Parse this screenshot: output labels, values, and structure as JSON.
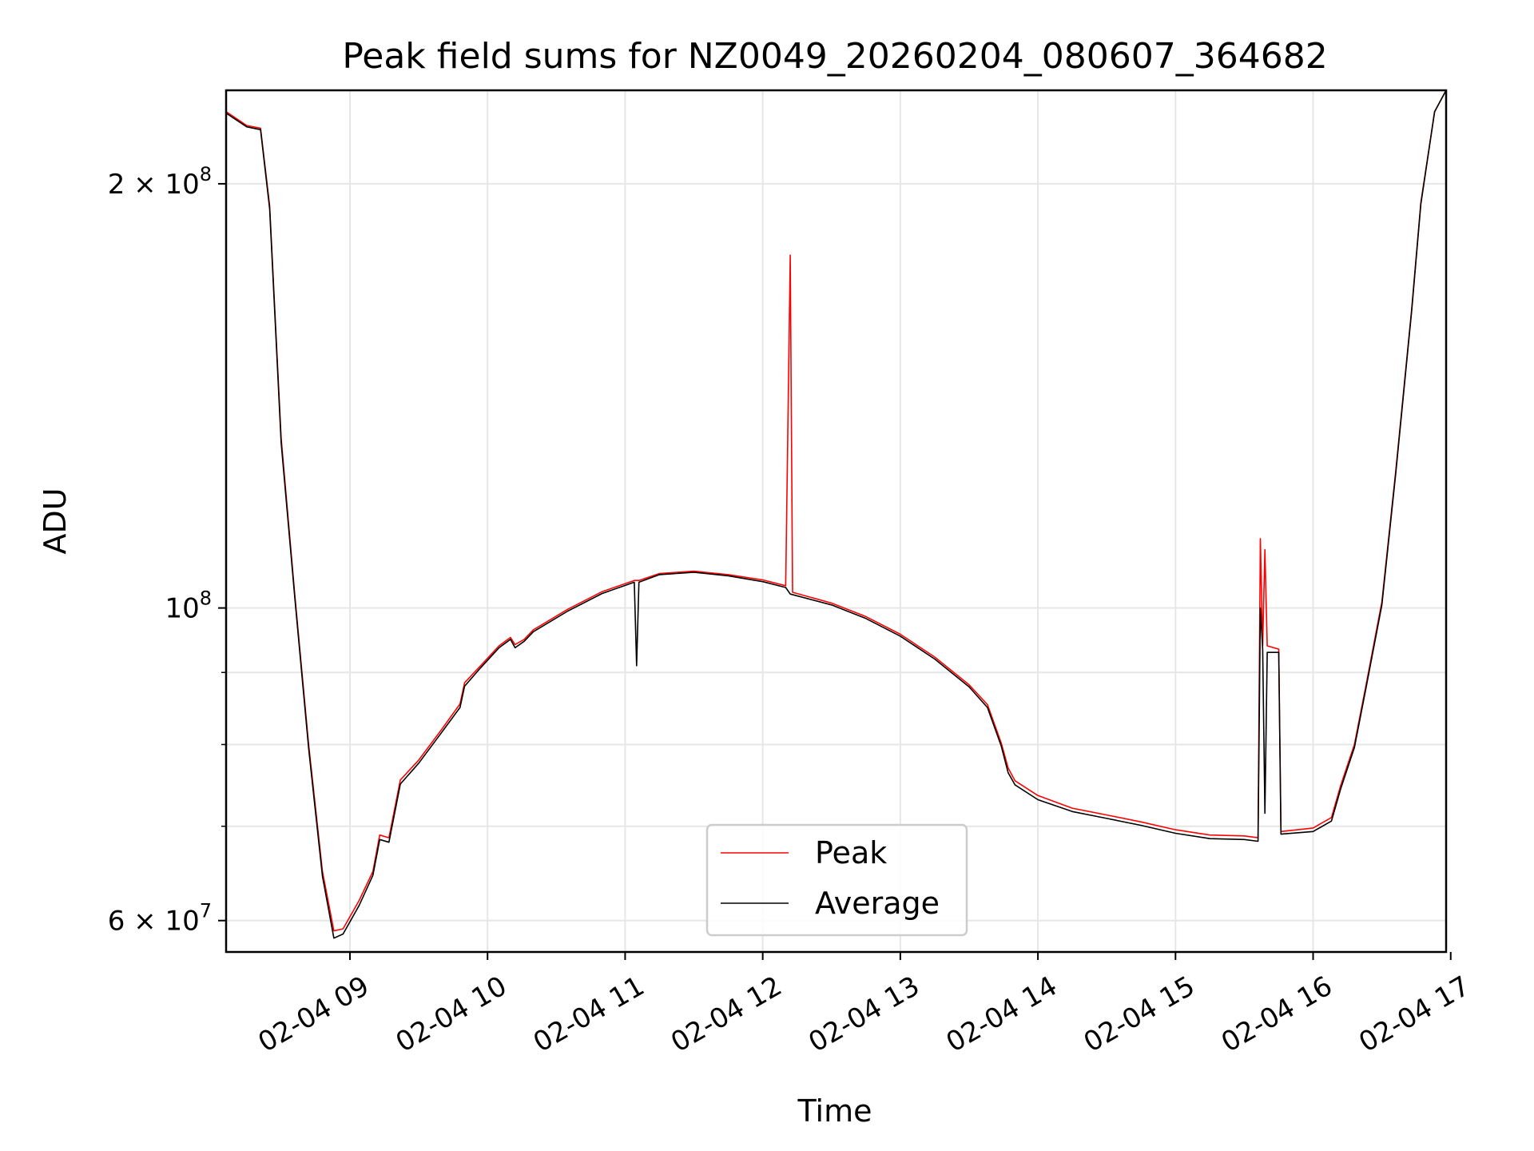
{
  "chart_data": {
    "type": "line",
    "title": "Peak field sums for NZ0049_20260204_080607_364682",
    "xlabel": "Time",
    "ylabel": "ADU",
    "x_ticks": [
      "02-04 09",
      "02-04 10",
      "02-04 11",
      "02-04 12",
      "02-04 13",
      "02-04 14",
      "02-04 15",
      "02-04 16",
      "02-04 17"
    ],
    "y_scale": "log",
    "y_major_ticks": [
      {
        "value": 60000000,
        "label": "6 × 10^7",
        "base": "6 × 10",
        "exp": "7"
      },
      {
        "value": 100000000,
        "label": "10^8",
        "base": "10",
        "exp": "8"
      },
      {
        "value": 200000000,
        "label": "2 × 10^8",
        "base": "2 × 10",
        "exp": "8"
      }
    ],
    "y_minor_ticks": [
      70000000,
      80000000,
      90000000
    ],
    "xlim": [
      "2026-02-04T08:06",
      "2026-02-04T16:58"
    ],
    "ylim": [
      57000000,
      233000000
    ],
    "grid": true,
    "legend_position": "lower-center",
    "series": [
      {
        "name": "Peak",
        "color": "#ff0000",
        "points": [
          [
            "2026-02-04T08:06",
            225000000
          ],
          [
            "2026-02-04T08:15",
            220000000
          ],
          [
            "2026-02-04T08:21",
            219000000
          ],
          [
            "2026-02-04T08:25",
            193000000
          ],
          [
            "2026-02-04T08:30",
            132000000
          ],
          [
            "2026-02-04T08:36",
            102000000
          ],
          [
            "2026-02-04T08:42",
            80000000
          ],
          [
            "2026-02-04T08:48",
            65000000
          ],
          [
            "2026-02-04T08:53",
            59000000
          ],
          [
            "2026-02-04T08:57",
            59200000
          ],
          [
            "2026-02-04T09:04",
            62000000
          ],
          [
            "2026-02-04T09:10",
            65000000
          ],
          [
            "2026-02-04T09:13",
            69000000
          ],
          [
            "2026-02-04T09:17",
            68700000
          ],
          [
            "2026-02-04T09:22",
            75500000
          ],
          [
            "2026-02-04T09:30",
            78000000
          ],
          [
            "2026-02-04T09:40",
            82000000
          ],
          [
            "2026-02-04T09:48",
            85500000
          ],
          [
            "2026-02-04T09:50",
            88500000
          ],
          [
            "2026-02-04T09:57",
            91000000
          ],
          [
            "2026-02-04T10:05",
            94000000
          ],
          [
            "2026-02-04T10:10",
            95300000
          ],
          [
            "2026-02-04T10:12",
            94200000
          ],
          [
            "2026-02-04T10:16",
            95000000
          ],
          [
            "2026-02-04T10:20",
            96500000
          ],
          [
            "2026-02-04T10:35",
            99800000
          ],
          [
            "2026-02-04T10:50",
            102700000
          ],
          [
            "2026-02-04T11:04",
            104600000
          ],
          [
            "2026-02-04T11:06",
            104600000
          ],
          [
            "2026-02-04T11:15",
            105800000
          ],
          [
            "2026-02-04T11:30",
            106200000
          ],
          [
            "2026-02-04T11:45",
            105600000
          ],
          [
            "2026-02-04T12:00",
            104700000
          ],
          [
            "2026-02-04T12:10",
            103700000
          ],
          [
            "2026-02-04T12:12",
            178000000
          ],
          [
            "2026-02-04T12:13",
            102600000
          ],
          [
            "2026-02-04T12:30",
            100800000
          ],
          [
            "2026-02-04T12:45",
            98600000
          ],
          [
            "2026-02-04T13:00",
            95800000
          ],
          [
            "2026-02-04T13:15",
            92300000
          ],
          [
            "2026-02-04T13:30",
            88200000
          ],
          [
            "2026-02-04T13:38",
            85400000
          ],
          [
            "2026-02-04T13:44",
            80200000
          ],
          [
            "2026-02-04T13:47",
            77000000
          ],
          [
            "2026-02-04T13:50",
            75400000
          ],
          [
            "2026-02-04T14:00",
            73600000
          ],
          [
            "2026-02-04T14:15",
            72100000
          ],
          [
            "2026-02-04T14:30",
            71300000
          ],
          [
            "2026-02-04T14:45",
            70500000
          ],
          [
            "2026-02-04T15:00",
            69600000
          ],
          [
            "2026-02-04T15:15",
            69000000
          ],
          [
            "2026-02-04T15:30",
            68900000
          ],
          [
            "2026-02-04T15:36",
            68700000
          ],
          [
            "2026-02-04T15:37",
            112000000
          ],
          [
            "2026-02-04T15:38",
            94000000
          ],
          [
            "2026-02-04T15:39",
            110000000
          ],
          [
            "2026-02-04T15:40",
            94000000
          ],
          [
            "2026-02-04T15:45",
            93500000
          ],
          [
            "2026-02-04T15:46",
            69400000
          ],
          [
            "2026-02-04T16:00",
            69800000
          ],
          [
            "2026-02-04T16:08",
            71000000
          ],
          [
            "2026-02-04T16:12",
            74800000
          ],
          [
            "2026-02-04T16:18",
            80000000
          ],
          [
            "2026-02-04T16:23",
            88000000
          ],
          [
            "2026-02-04T16:30",
            101000000
          ],
          [
            "2026-02-04T16:36",
            125000000
          ],
          [
            "2026-02-04T16:43",
            163000000
          ],
          [
            "2026-02-04T16:47",
            194000000
          ],
          [
            "2026-02-04T16:53",
            225000000
          ],
          [
            "2026-02-04T16:58",
            233000000
          ]
        ]
      },
      {
        "name": "Average",
        "color": "#000000",
        "points": [
          [
            "2026-02-04T08:06",
            224500000
          ],
          [
            "2026-02-04T08:15",
            219500000
          ],
          [
            "2026-02-04T08:21",
            218500000
          ],
          [
            "2026-02-04T08:25",
            192000000
          ],
          [
            "2026-02-04T08:30",
            131000000
          ],
          [
            "2026-02-04T08:36",
            101500000
          ],
          [
            "2026-02-04T08:42",
            79500000
          ],
          [
            "2026-02-04T08:48",
            64500000
          ],
          [
            "2026-02-04T08:53",
            58300000
          ],
          [
            "2026-02-04T08:57",
            58700000
          ],
          [
            "2026-02-04T09:04",
            61500000
          ],
          [
            "2026-02-04T09:10",
            64600000
          ],
          [
            "2026-02-04T09:13",
            68500000
          ],
          [
            "2026-02-04T09:17",
            68200000
          ],
          [
            "2026-02-04T09:22",
            75000000
          ],
          [
            "2026-02-04T09:30",
            77600000
          ],
          [
            "2026-02-04T09:40",
            81600000
          ],
          [
            "2026-02-04T09:48",
            85000000
          ],
          [
            "2026-02-04T09:50",
            88000000
          ],
          [
            "2026-02-04T09:57",
            90700000
          ],
          [
            "2026-02-04T10:05",
            93700000
          ],
          [
            "2026-02-04T10:10",
            95000000
          ],
          [
            "2026-02-04T10:12",
            93700000
          ],
          [
            "2026-02-04T10:16",
            94700000
          ],
          [
            "2026-02-04T10:20",
            96200000
          ],
          [
            "2026-02-04T10:35",
            99500000
          ],
          [
            "2026-02-04T10:50",
            102400000
          ],
          [
            "2026-02-04T11:04",
            104300000
          ],
          [
            "2026-02-04T11:05",
            91000000
          ],
          [
            "2026-02-04T11:06",
            104300000
          ],
          [
            "2026-02-04T11:15",
            105600000
          ],
          [
            "2026-02-04T11:30",
            106000000
          ],
          [
            "2026-02-04T11:45",
            105400000
          ],
          [
            "2026-02-04T12:00",
            104400000
          ],
          [
            "2026-02-04T12:10",
            103400000
          ],
          [
            "2026-02-04T12:12",
            102300000
          ],
          [
            "2026-02-04T12:30",
            100500000
          ],
          [
            "2026-02-04T12:45",
            98300000
          ],
          [
            "2026-02-04T13:00",
            95500000
          ],
          [
            "2026-02-04T13:15",
            92000000
          ],
          [
            "2026-02-04T13:30",
            87900000
          ],
          [
            "2026-02-04T13:38",
            85000000
          ],
          [
            "2026-02-04T13:44",
            79800000
          ],
          [
            "2026-02-04T13:47",
            76400000
          ],
          [
            "2026-02-04T13:50",
            74900000
          ],
          [
            "2026-02-04T14:00",
            73100000
          ],
          [
            "2026-02-04T14:15",
            71700000
          ],
          [
            "2026-02-04T14:30",
            70900000
          ],
          [
            "2026-02-04T14:45",
            70100000
          ],
          [
            "2026-02-04T15:00",
            69200000
          ],
          [
            "2026-02-04T15:15",
            68600000
          ],
          [
            "2026-02-04T15:30",
            68500000
          ],
          [
            "2026-02-04T15:36",
            68300000
          ],
          [
            "2026-02-04T15:37",
            100000000
          ],
          [
            "2026-02-04T15:38",
            93500000
          ],
          [
            "2026-02-04T15:39",
            71500000
          ],
          [
            "2026-02-04T15:40",
            93000000
          ],
          [
            "2026-02-04T15:45",
            93000000
          ],
          [
            "2026-02-04T15:46",
            69100000
          ],
          [
            "2026-02-04T16:00",
            69400000
          ],
          [
            "2026-02-04T16:08",
            70600000
          ],
          [
            "2026-02-04T16:12",
            74400000
          ],
          [
            "2026-02-04T16:18",
            79600000
          ],
          [
            "2026-02-04T16:23",
            87600000
          ],
          [
            "2026-02-04T16:30",
            100500000
          ],
          [
            "2026-02-04T16:36",
            124500000
          ],
          [
            "2026-02-04T16:43",
            162500000
          ],
          [
            "2026-02-04T16:47",
            193500000
          ],
          [
            "2026-02-04T16:53",
            225000000
          ],
          [
            "2026-02-04T16:58",
            233000000
          ]
        ]
      }
    ]
  }
}
